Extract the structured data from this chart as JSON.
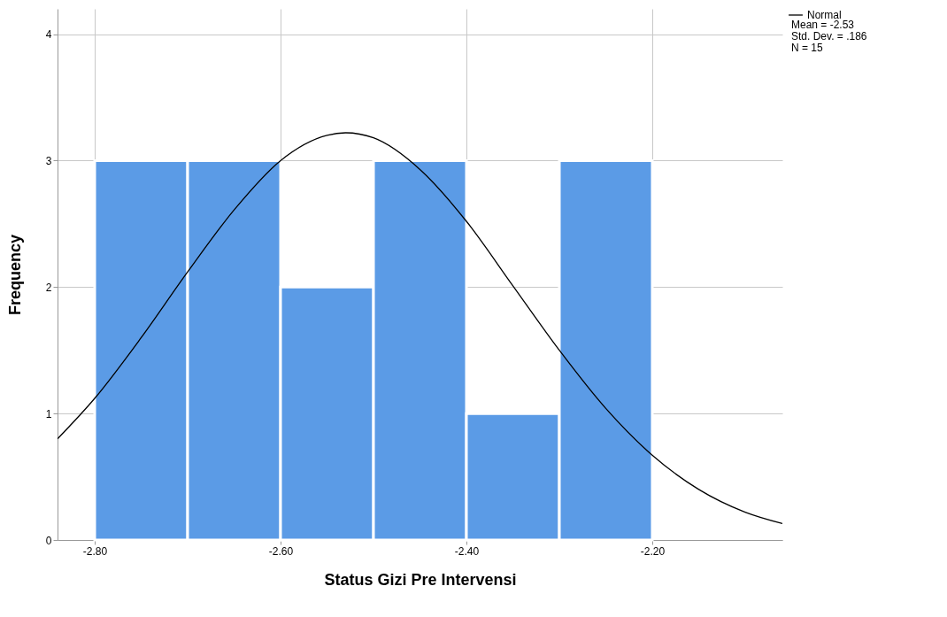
{
  "chart_data": {
    "type": "histogram",
    "xlabel": "Status Gizi Pre Intervensi",
    "ylabel": "Frequency",
    "bins": [
      -2.8,
      -2.7,
      -2.6,
      -2.5,
      -2.4,
      -2.3,
      -2.2
    ],
    "values": [
      3,
      3,
      2,
      3,
      1,
      3
    ],
    "color": "#5b9be6",
    "series": [
      {
        "name": "Normal",
        "type": "line",
        "color": "#000000",
        "x": [
          -2.84,
          -2.8,
          -2.75,
          -2.7,
          -2.65,
          -2.6,
          -2.55,
          -2.53,
          -2.5,
          -2.45,
          -2.4,
          -2.35,
          -2.3,
          -2.25,
          -2.2,
          -2.15,
          -2.1,
          -2.06
        ],
        "values": [
          0.8,
          1.12,
          1.6,
          2.12,
          2.61,
          3.0,
          3.2,
          3.22,
          3.18,
          2.93,
          2.52,
          2.01,
          1.5,
          1.04,
          0.67,
          0.4,
          0.22,
          0.13
        ]
      }
    ],
    "xlim": [
      -2.84,
      -2.06
    ],
    "xticks": [
      {
        "value": -2.8,
        "label": "-2.80"
      },
      {
        "value": -2.6,
        "label": "-2.60"
      },
      {
        "value": -2.4,
        "label": "-2.40"
      },
      {
        "value": -2.2,
        "label": "-2.20"
      }
    ],
    "ylim": [
      0,
      4.2
    ],
    "yticks": [
      0,
      1,
      2,
      3,
      4
    ],
    "grid": true,
    "legend": "top right",
    "annotations": [
      "Mean = -2.53",
      "Std. Dev. = .186",
      "N = 15"
    ]
  }
}
